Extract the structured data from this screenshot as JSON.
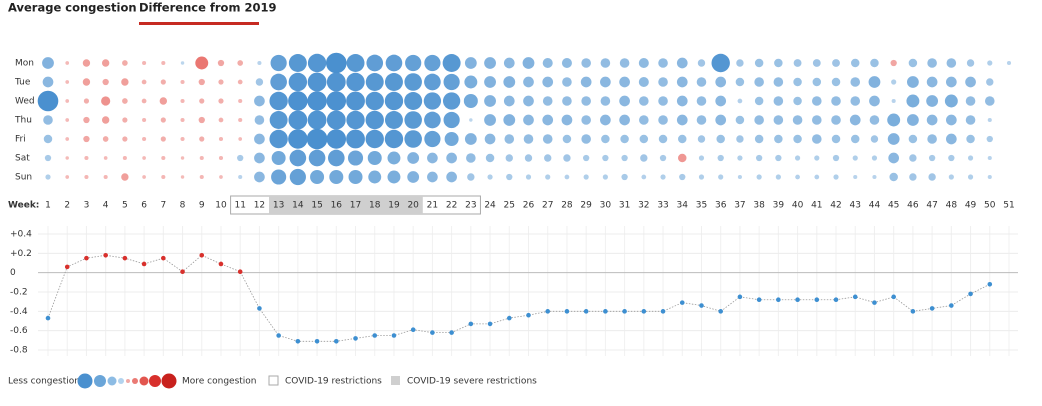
{
  "tabs": [
    "Average congestion",
    "Difference from 2019"
  ],
  "legend": {
    "less": "Less congestion",
    "more": "More congestion"
  },
  "chart_data": [
    {
      "type": "bubble",
      "x_label": "Week:",
      "x": [
        1,
        2,
        3,
        4,
        5,
        6,
        7,
        8,
        9,
        10,
        11,
        12,
        13,
        14,
        15,
        16,
        17,
        18,
        19,
        20,
        21,
        22,
        23,
        24,
        25,
        26,
        27,
        28,
        29,
        30,
        31,
        32,
        33,
        34,
        35,
        36,
        37,
        38,
        39,
        40,
        41,
        42,
        43,
        44,
        45,
        46,
        47,
        48,
        49,
        50,
        51
      ],
      "color": "#4a90cf",
      "positive_color": "#e2463f",
      "restrictions": {
        "label": "COVID-19 restrictions",
        "weeks": [
          11,
          23
        ]
      },
      "severe_restrictions": {
        "label": "COVID-19 severe restrictions",
        "weeks": [
          13,
          20
        ],
        "color": "#cfcfcf"
      },
      "series": [
        {
          "name": "Mon",
          "values": [
            -0.4,
            0.03,
            0.2,
            0.2,
            0.12,
            0.05,
            0.05,
            -0.02,
            0.45,
            0.15,
            0.12,
            -0.05,
            -0.6,
            -0.68,
            -0.7,
            -0.8,
            -0.68,
            -0.62,
            -0.62,
            -0.6,
            -0.6,
            -0.68,
            -0.4,
            -0.4,
            -0.35,
            -0.4,
            -0.32,
            -0.32,
            -0.3,
            -0.3,
            -0.3,
            -0.32,
            -0.3,
            -0.35,
            -0.2,
            -0.7,
            -0.2,
            -0.25,
            -0.25,
            -0.22,
            -0.22,
            -0.22,
            -0.25,
            -0.25,
            0.15,
            -0.25,
            -0.3,
            -0.3,
            -0.2,
            -0.1,
            -0.05
          ]
        },
        {
          "name": "Tue",
          "values": [
            -0.35,
            0.03,
            0.2,
            0.15,
            0.2,
            0.08,
            0.1,
            0.05,
            0.15,
            0.1,
            0.08,
            -0.2,
            -0.62,
            -0.7,
            -0.72,
            -0.72,
            -0.7,
            -0.68,
            -0.68,
            -0.66,
            -0.62,
            -0.6,
            -0.45,
            -0.4,
            -0.4,
            -0.35,
            -0.35,
            -0.3,
            -0.35,
            -0.35,
            -0.35,
            -0.32,
            -0.3,
            -0.35,
            -0.3,
            -0.35,
            -0.25,
            -0.3,
            -0.3,
            -0.25,
            -0.25,
            -0.25,
            -0.3,
            -0.4,
            -0.1,
            -0.4,
            -0.35,
            -0.35,
            -0.35,
            -0.2,
            null
          ]
        },
        {
          "name": "Wed",
          "values": [
            -0.8,
            0.03,
            0.1,
            0.28,
            0.12,
            0.08,
            0.2,
            0.05,
            0.1,
            0.1,
            0.05,
            -0.35,
            -0.7,
            -0.75,
            -0.75,
            -0.75,
            -0.72,
            -0.7,
            -0.7,
            -0.68,
            -0.65,
            -0.65,
            -0.5,
            -0.4,
            -0.35,
            -0.35,
            -0.3,
            -0.3,
            -0.3,
            -0.3,
            -0.35,
            -0.3,
            -0.3,
            -0.35,
            -0.3,
            -0.35,
            -0.08,
            -0.25,
            -0.3,
            -0.25,
            -0.3,
            -0.3,
            -0.3,
            -0.35,
            -0.05,
            -0.45,
            -0.4,
            -0.45,
            -0.3,
            -0.3,
            null
          ]
        },
        {
          "name": "Thu",
          "values": [
            -0.3,
            0.03,
            0.15,
            0.2,
            0.1,
            0.05,
            0.1,
            0.05,
            0.15,
            0.08,
            0.05,
            -0.3,
            -0.68,
            -0.72,
            -0.72,
            -0.72,
            -0.7,
            -0.7,
            -0.68,
            -0.66,
            -0.62,
            -0.6,
            -0.02,
            -0.4,
            -0.4,
            -0.35,
            -0.35,
            -0.35,
            -0.3,
            -0.35,
            -0.35,
            -0.3,
            -0.3,
            -0.35,
            -0.3,
            -0.35,
            -0.25,
            -0.3,
            -0.3,
            -0.3,
            -0.3,
            -0.3,
            -0.35,
            -0.3,
            -0.45,
            -0.4,
            -0.35,
            -0.35,
            -0.3,
            -0.05,
            null
          ]
        },
        {
          "name": "Fri",
          "values": [
            -0.25,
            0.03,
            0.15,
            0.12,
            0.1,
            0.05,
            0.1,
            0.05,
            0.1,
            0.05,
            0.03,
            -0.35,
            -0.7,
            -0.75,
            -0.8,
            -0.75,
            -0.72,
            -0.7,
            -0.7,
            -0.66,
            -0.6,
            -0.5,
            -0.4,
            -0.35,
            -0.3,
            -0.3,
            -0.3,
            -0.25,
            -0.3,
            -0.25,
            -0.25,
            -0.25,
            -0.25,
            -0.25,
            -0.2,
            -0.25,
            -0.2,
            -0.25,
            -0.25,
            -0.25,
            -0.3,
            -0.25,
            -0.25,
            -0.2,
            -0.4,
            -0.25,
            -0.3,
            -0.35,
            -0.25,
            -0.15,
            null
          ]
        },
        {
          "name": "Sat",
          "values": [
            -0.15,
            0.02,
            0.05,
            0.03,
            0.05,
            0.03,
            0.05,
            0.02,
            0.05,
            0.05,
            -0.15,
            -0.35,
            -0.5,
            -0.62,
            -0.62,
            -0.62,
            -0.55,
            -0.5,
            -0.45,
            -0.4,
            -0.35,
            -0.35,
            -0.3,
            -0.25,
            -0.2,
            -0.2,
            -0.2,
            -0.2,
            -0.15,
            -0.15,
            -0.15,
            -0.2,
            -0.15,
            0.25,
            -0.1,
            -0.15,
            -0.1,
            -0.15,
            -0.15,
            -0.1,
            -0.1,
            -0.15,
            -0.1,
            -0.1,
            -0.35,
            -0.2,
            -0.15,
            -0.15,
            -0.1,
            -0.05,
            null
          ]
        },
        {
          "name": "Sun",
          "values": [
            -0.1,
            0.03,
            0.05,
            0.05,
            0.2,
            0.03,
            0.05,
            0.02,
            0.05,
            0.03,
            -0.05,
            -0.35,
            -0.55,
            -0.6,
            -0.5,
            -0.5,
            -0.5,
            -0.45,
            -0.45,
            -0.4,
            -0.35,
            -0.35,
            -0.2,
            -0.1,
            -0.15,
            -0.1,
            -0.1,
            -0.08,
            -0.1,
            -0.1,
            -0.15,
            -0.08,
            -0.1,
            -0.15,
            -0.1,
            -0.1,
            -0.05,
            -0.1,
            -0.1,
            -0.08,
            -0.08,
            -0.1,
            -0.05,
            -0.05,
            -0.25,
            -0.2,
            -0.2,
            -0.1,
            -0.1,
            -0.05,
            null
          ]
        }
      ]
    },
    {
      "type": "line",
      "color": "#3d8fd1",
      "positive_color": "#d8302c",
      "grid": true,
      "ylim": [
        -0.8,
        0.4
      ],
      "yticks": [
        {
          "value": 0.4,
          "label": "+0.4"
        },
        {
          "value": 0.2,
          "label": "+0.2"
        },
        0,
        -0.2,
        -0.4,
        -0.6,
        -0.8
      ],
      "values": [
        -0.47,
        0.06,
        0.15,
        0.18,
        0.15,
        0.09,
        0.15,
        0.01,
        0.18,
        0.09,
        0.01,
        -0.37,
        -0.65,
        -0.71,
        -0.71,
        -0.71,
        -0.68,
        -0.65,
        -0.65,
        -0.59,
        -0.62,
        -0.62,
        -0.53,
        -0.53,
        -0.47,
        -0.44,
        -0.4,
        -0.4,
        -0.4,
        -0.4,
        -0.4,
        -0.4,
        -0.4,
        -0.31,
        -0.34,
        -0.4,
        -0.25,
        -0.28,
        -0.28,
        -0.28,
        -0.28,
        -0.28,
        -0.25,
        -0.31,
        -0.25,
        -0.4,
        -0.37,
        -0.34,
        -0.22,
        -0.12,
        null
      ]
    }
  ]
}
